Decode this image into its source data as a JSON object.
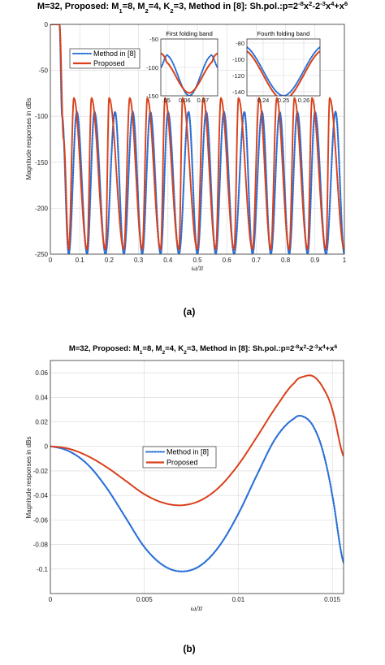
{
  "chart_data": [
    {
      "id": "a",
      "type": "line",
      "caption": "(a)",
      "title": "M=32, Proposed: M1=8, M2=4, K2=3, Method in [8]: Sh.pol.:p=2^-8x^2-2^-3x^4+x^6",
      "xlabel": "ω/π",
      "ylabel": "Magnitude responses in dBs",
      "xlim": [
        0,
        1
      ],
      "ylim": [
        -250,
        0
      ],
      "xticks": [
        0,
        0.1,
        0.2,
        0.3,
        0.4,
        0.5,
        0.6,
        0.7,
        0.8,
        0.9,
        1
      ],
      "xticklabels": [
        "0",
        "0.1",
        "0.2",
        "0.3",
        "0.4",
        "0.5",
        "0.6",
        "0.7",
        "0.8",
        "0.9",
        "1"
      ],
      "yticks": [
        0,
        -50,
        -100,
        -150,
        -200,
        -250
      ],
      "yticklabels": [
        "0",
        "-50",
        "-100",
        "-150",
        "-200",
        "-250"
      ],
      "grid": true,
      "legend": {
        "placement": "upper-left",
        "entries": [
          "Method in [8]",
          "Proposed"
        ]
      },
      "series": [
        {
          "name": "Method in [8]",
          "style": "dotted",
          "color": "#2a6fd6",
          "passband_edge": 0.031,
          "stopband_lobe_peaks_dB": -95,
          "nulls_dB": -250,
          "x": [
            0,
            0.031,
            0.04,
            0.0625,
            0.09,
            0.125,
            0.15,
            0.1875,
            0.22,
            0.25,
            0.28,
            0.3125,
            0.34,
            0.375,
            0.4,
            0.4375,
            0.47,
            0.5,
            0.53,
            0.5625,
            0.59,
            0.625,
            0.66,
            0.6875,
            0.72,
            0.75,
            0.78,
            0.8125,
            0.84,
            0.875,
            0.9,
            0.9375,
            0.97,
            1
          ],
          "y": [
            0,
            0,
            -100,
            -250,
            -95,
            -250,
            -95,
            -250,
            -95,
            -250,
            -95,
            -250,
            -95,
            -250,
            -95,
            -250,
            -95,
            -250,
            -95,
            -250,
            -95,
            -250,
            -95,
            -250,
            -95,
            -250,
            -95,
            -250,
            -95,
            -250,
            -95,
            -250,
            -95,
            -250
          ]
        },
        {
          "name": "Proposed",
          "style": "solid",
          "color": "#d9401a",
          "passband_edge": 0.031,
          "stopband_lobe_peaks_dB": -80,
          "null_floor_dB": -245,
          "x": [
            0,
            0.031,
            0.045,
            0.0625,
            0.08,
            0.125,
            0.14,
            0.1875,
            0.2,
            0.25,
            0.27,
            0.3125,
            0.33,
            0.375,
            0.39,
            0.4375,
            0.45,
            0.5,
            0.52,
            0.5625,
            0.58,
            0.625,
            0.64,
            0.6875,
            0.71,
            0.75,
            0.77,
            0.8125,
            0.83,
            0.875,
            0.89,
            0.9375,
            0.95,
            1
          ],
          "y": [
            0,
            0,
            -125,
            -245,
            -80,
            -245,
            -80,
            -245,
            -80,
            -245,
            -80,
            -245,
            -80,
            -245,
            -80,
            -245,
            -80,
            -245,
            -80,
            -245,
            -80,
            -245,
            -80,
            -245,
            -80,
            -245,
            -80,
            -245,
            -80,
            -245,
            -80,
            -245,
            -80,
            -245
          ]
        }
      ],
      "insets": [
        {
          "title": "First folding band",
          "xlim": [
            0.047,
            0.078
          ],
          "ylim": [
            -150,
            -50
          ],
          "xticks": [
            0.05,
            0.06,
            0.07
          ],
          "xticklabels": [
            ".05",
            "0.06",
            "0.07"
          ],
          "yticks": [
            -50,
            -100,
            -150
          ],
          "yticklabels": [
            "-50",
            "-100",
            "-150"
          ],
          "series": [
            {
              "name": "Method in [8]",
              "x": [
                0.047,
                0.051,
                0.0625,
                0.074,
                0.078
              ],
              "y": [
                -100,
                -80,
                -150,
                -80,
                -100
              ]
            },
            {
              "name": "Proposed",
              "x": [
                0.047,
                0.05,
                0.0625,
                0.075,
                0.078
              ],
              "y": [
                -75,
                -90,
                -145,
                -90,
                -75
              ]
            }
          ]
        },
        {
          "title": "Fourth folding band",
          "xlim": [
            0.232,
            0.268
          ],
          "ylim": [
            -145,
            -75
          ],
          "xticks": [
            0.24,
            0.25,
            0.26
          ],
          "xticklabels": [
            "0.24",
            "0.25",
            "0.26"
          ],
          "yticks": [
            -80,
            -100,
            -120,
            -140
          ],
          "yticklabels": [
            "-80",
            "-100",
            "-120",
            "-140"
          ],
          "series": [
            {
              "name": "Method in [8]",
              "x": [
                0.232,
                0.25,
                0.268
              ],
              "y": [
                -85,
                -145,
                -85
              ]
            },
            {
              "name": "Proposed",
              "x": [
                0.232,
                0.25,
                0.268
              ],
              "y": [
                -90,
                -150,
                -90
              ]
            }
          ]
        }
      ]
    },
    {
      "id": "b",
      "type": "line",
      "caption": "(b)",
      "title": "M=32, Proposed: M1=8, M2=4, K2=3, Method in [8]: Sh.pol.:p=2^-8x^2-2^-3x^4+x^6",
      "xlabel": "ω/π",
      "ylabel": "Magnitude responses in dBs",
      "xlim": [
        0,
        0.0156
      ],
      "ylim": [
        -0.12,
        0.07
      ],
      "xticks": [
        0,
        0.005,
        0.01,
        0.015
      ],
      "xticklabels": [
        "0",
        "0.005",
        "0.01",
        "0.015"
      ],
      "yticks": [
        0.06,
        0.04,
        0.02,
        0,
        -0.02,
        -0.04,
        -0.06,
        -0.08,
        -0.1
      ],
      "yticklabels": [
        "0.06",
        "0.04",
        "0.02",
        "0",
        "-0.02",
        "-0.04",
        "-0.06",
        "-0.08",
        "-0.1"
      ],
      "grid": true,
      "legend": {
        "placement": "center-left",
        "entries": [
          "Method in [8]",
          "Proposed"
        ]
      },
      "series": [
        {
          "name": "Method in [8]",
          "style": "dotted",
          "color": "#2a6fd6",
          "x": [
            0,
            0.001,
            0.002,
            0.003,
            0.004,
            0.005,
            0.006,
            0.007,
            0.008,
            0.009,
            0.01,
            0.011,
            0.012,
            0.013,
            0.0135,
            0.014,
            0.0145,
            0.015,
            0.0156
          ],
          "y": [
            0,
            -0.004,
            -0.015,
            -0.034,
            -0.058,
            -0.082,
            -0.097,
            -0.102,
            -0.097,
            -0.081,
            -0.055,
            -0.023,
            0.007,
            0.023,
            0.024,
            0.016,
            -0.004,
            -0.04,
            -0.095
          ]
        },
        {
          "name": "Proposed",
          "style": "solid",
          "color": "#d9401a",
          "x": [
            0,
            0.001,
            0.002,
            0.003,
            0.004,
            0.005,
            0.006,
            0.007,
            0.008,
            0.009,
            0.01,
            0.011,
            0.012,
            0.013,
            0.0135,
            0.014,
            0.0145,
            0.015,
            0.0156
          ],
          "y": [
            0,
            -0.002,
            -0.008,
            -0.017,
            -0.028,
            -0.039,
            -0.046,
            -0.048,
            -0.044,
            -0.033,
            -0.015,
            0.008,
            0.032,
            0.052,
            0.057,
            0.057,
            0.048,
            0.03,
            -0.008
          ]
        }
      ]
    }
  ]
}
